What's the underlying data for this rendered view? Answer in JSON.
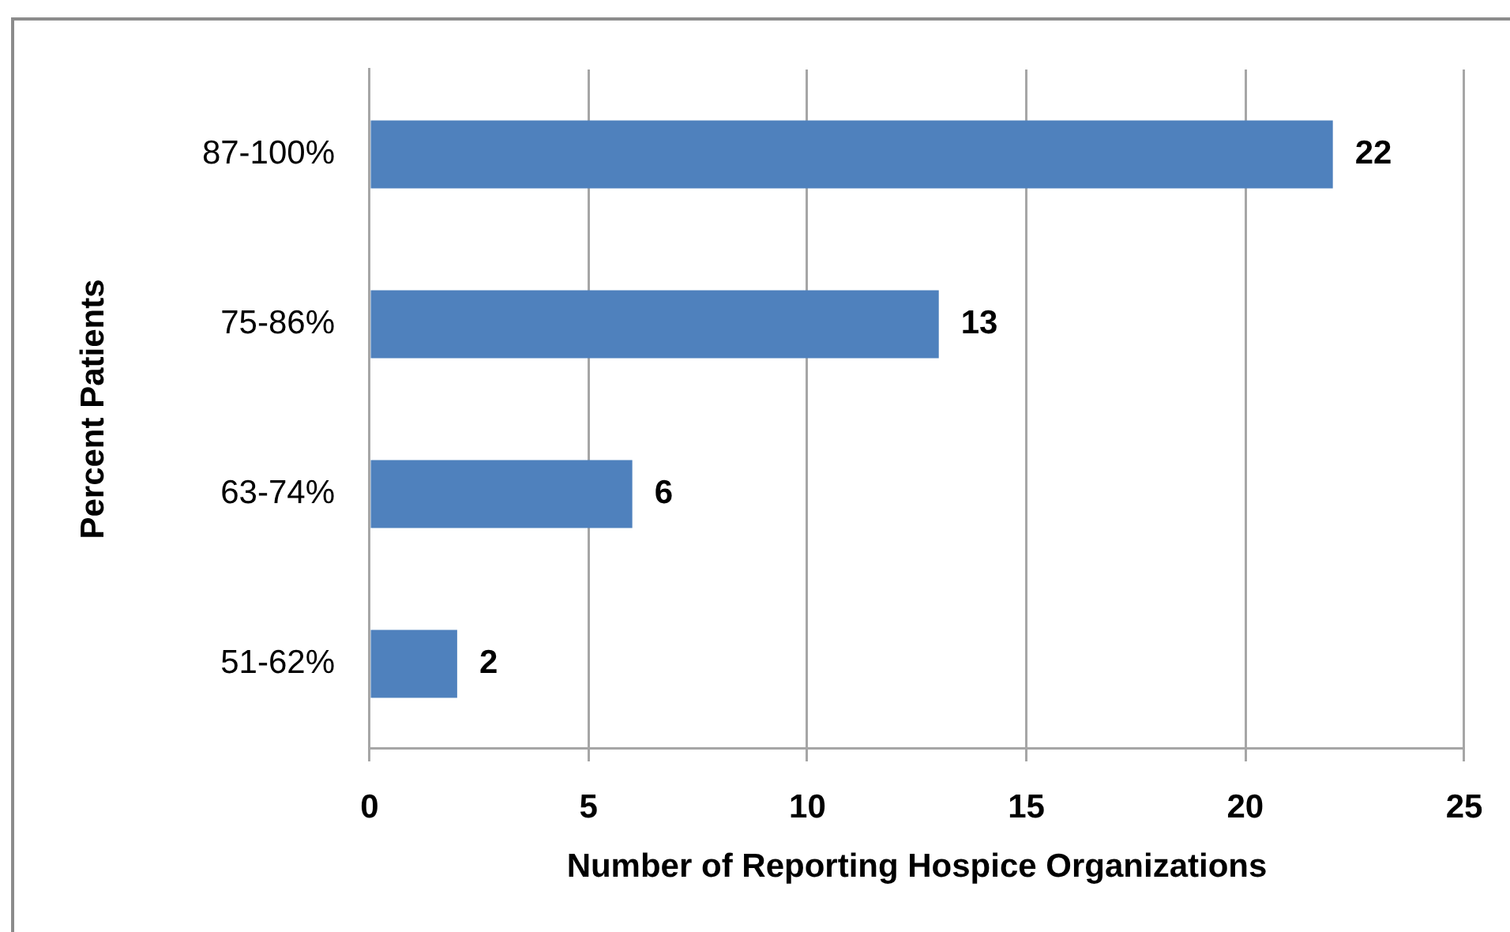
{
  "chart_data": {
    "type": "bar",
    "orientation": "horizontal",
    "categories": [
      "87-100%",
      "75-86%",
      "63-74%",
      "51-62%"
    ],
    "values": [
      22,
      13,
      6,
      2
    ],
    "color": "#4f81bd",
    "xlabel": "Number of Reporting Hospice Organizations",
    "ylabel": "Percent Patients",
    "xlim": [
      0,
      25
    ],
    "xticks": [
      0,
      5,
      10,
      15,
      20,
      25
    ],
    "grid": "x",
    "data_labels": true
  }
}
